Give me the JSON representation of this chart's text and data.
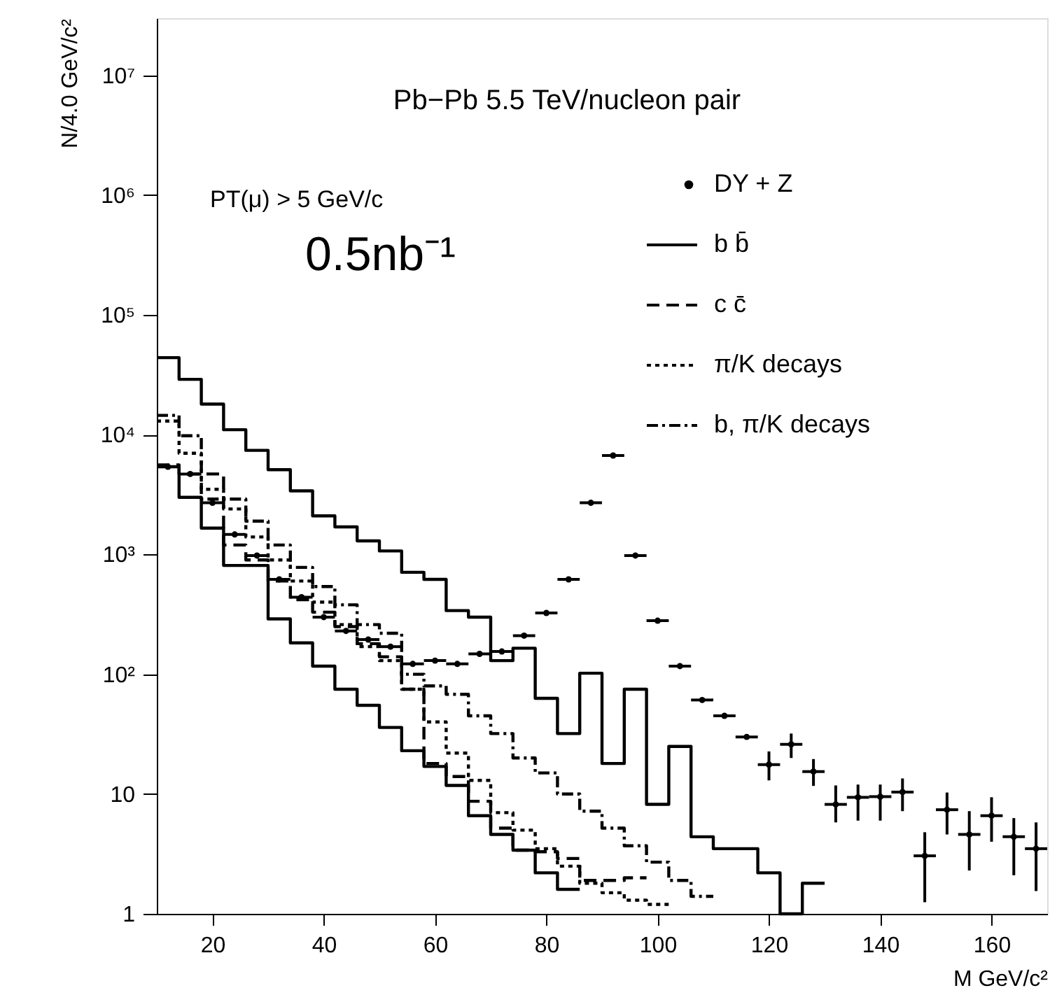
{
  "chart_data": {
    "type": "step",
    "xlabel": "M GeV/c²",
    "ylabel": "N/4.0 GeV/c²",
    "annotations": [
      "Pb−Pb  5.5 TeV/nucleon pair",
      "PT(μ) > 5 GeV/c",
      "0.5nb⁻¹"
    ],
    "xlim": [
      10,
      170
    ],
    "xticks": [
      20,
      40,
      60,
      80,
      100,
      120,
      140,
      160
    ],
    "ylim": [
      1,
      30000000
    ],
    "log": true,
    "yticks": [
      1,
      10,
      {
        "value": 100,
        "label": "10²"
      },
      {
        "value": 1000,
        "label": "10³"
      },
      {
        "value": 10000,
        "label": "10⁴"
      },
      {
        "value": 100000,
        "label": "10⁵"
      },
      {
        "value": 1000000,
        "label": "10⁶"
      },
      {
        "value": 10000000,
        "label": "10⁷"
      }
    ],
    "grid": false,
    "legend": "top right",
    "series": [
      {
        "name": "DY + Z",
        "type": "scatter",
        "marker": "circle",
        "color": "#000000",
        "x": [
          12,
          16,
          20,
          24,
          28,
          32,
          36,
          40,
          44,
          48,
          52,
          56,
          60,
          64,
          68,
          72,
          76,
          80,
          84,
          88,
          92,
          96,
          100,
          104,
          108,
          112,
          116,
          120,
          124,
          128,
          132,
          136,
          140,
          144,
          148,
          152,
          156,
          160,
          164,
          168
        ],
        "values": [
          5400,
          4700,
          2700,
          1470,
          980,
          620,
          440,
          300,
          230,
          195,
          170,
          122,
          130,
          122,
          148,
          155,
          210,
          325,
          620,
          2700,
          6700,
          980,
          280,
          117,
          61,
          45,
          30,
          17.6,
          26,
          15.4,
          8.2,
          9.4,
          9.5,
          10.4,
          3.05,
          7.4,
          4.6,
          6.6,
          4.4,
          3.5
        ],
        "xerrors": [
          2,
          2,
          2,
          2,
          2,
          2,
          2,
          2,
          2,
          2,
          2,
          2,
          2,
          2,
          2,
          2,
          2,
          2,
          2,
          2,
          2,
          2,
          2,
          2,
          2,
          2,
          2,
          2,
          2,
          2,
          2,
          2,
          2,
          2,
          2,
          2,
          2,
          2,
          2,
          2
        ],
        "errors": [
          null,
          null,
          null,
          null,
          null,
          null,
          null,
          null,
          null,
          null,
          null,
          null,
          null,
          null,
          null,
          null,
          null,
          null,
          null,
          null,
          null,
          null,
          null,
          null,
          null,
          null,
          null,
          [
            13,
            22.7
          ],
          [
            20,
            32
          ],
          [
            11.7,
            19.6
          ],
          [
            5.8,
            11.8
          ],
          [
            6,
            12
          ],
          [
            6,
            12
          ],
          [
            7.2,
            13.5
          ],
          [
            1.25,
            4.8
          ],
          [
            4.6,
            10.3
          ],
          [
            2.3,
            7.2
          ],
          [
            4,
            9.4
          ],
          [
            2.1,
            6.3
          ],
          [
            1.55,
            5.8
          ]
        ]
      },
      {
        "name": "b b̄",
        "line_style": "solid",
        "color": "#000000",
        "x": [
          10,
          14,
          18,
          22,
          26,
          30,
          34,
          38,
          42,
          46,
          50,
          54,
          58,
          62,
          66,
          70,
          74,
          78,
          82,
          86,
          90,
          94,
          98,
          102,
          106,
          110,
          114,
          118,
          122,
          126,
          130
        ],
        "values": [
          44000,
          29000,
          18000,
          11000,
          7400,
          5100,
          3400,
          2100,
          1700,
          1300,
          1070,
          710,
          620,
          340,
          300,
          130,
          165,
          63,
          32,
          102,
          18,
          75,
          8.2,
          25,
          4.4,
          3.5,
          3.5,
          2.2,
          1,
          1.8,
          1.8
        ]
      },
      {
        "line_style": "solid",
        "color": "#000000",
        "x": [
          10,
          14,
          18,
          22,
          26,
          30,
          34,
          38,
          42,
          46,
          50,
          54,
          58,
          62,
          66,
          70,
          74,
          78,
          82,
          86
        ],
        "values": [
          5400,
          3000,
          1660,
          810,
          810,
          290,
          183,
          117,
          75,
          55,
          36,
          23,
          17,
          11.8,
          6.6,
          4.6,
          3.4,
          2.2,
          1.6,
          1.6
        ]
      },
      {
        "name": "c c̄",
        "line_style": "dashed",
        "color": "#000000",
        "x": [
          10,
          14,
          18,
          22,
          26,
          30,
          34,
          38,
          42,
          46,
          50,
          54,
          58,
          62,
          66,
          70,
          74,
          78,
          82,
          86,
          90,
          94,
          98
        ],
        "values": [
          5600,
          4700,
          4700,
          1200,
          900,
          600,
          420,
          330,
          250,
          180,
          140,
          75,
          18,
          14,
          8.7,
          5.2,
          3.4,
          3.3,
          2.9,
          1.9,
          1.9,
          2.0,
          2.0
        ]
      },
      {
        "name": "π/K decays",
        "line_style": "dotted",
        "color": "#000000",
        "x": [
          10,
          14,
          18,
          22,
          26,
          30,
          34,
          38,
          42,
          46,
          50,
          54,
          58,
          62,
          66,
          70,
          74,
          78,
          82,
          86,
          90,
          94,
          98,
          102
        ],
        "values": [
          13000,
          7000,
          3500,
          2400,
          1400,
          900,
          600,
          400,
          260,
          170,
          130,
          75,
          40,
          22,
          13,
          7,
          5,
          3.5,
          2.5,
          1.8,
          1.5,
          1.3,
          1.2,
          1.2
        ]
      },
      {
        "name": "b, π/K decays",
        "line_style": "dashdot",
        "color": "#000000",
        "x": [
          10,
          14,
          18,
          22,
          26,
          30,
          34,
          38,
          42,
          46,
          50,
          54,
          58,
          62,
          66,
          70,
          74,
          78,
          82,
          86,
          90,
          94,
          98,
          102,
          106,
          110
        ],
        "values": [
          14500,
          9800,
          2900,
          2900,
          1900,
          1200,
          780,
          540,
          380,
          260,
          220,
          100,
          80,
          68,
          45,
          32,
          20,
          15,
          10,
          7.2,
          5.2,
          3.7,
          2.7,
          1.9,
          1.4,
          1.4
        ]
      }
    ]
  }
}
